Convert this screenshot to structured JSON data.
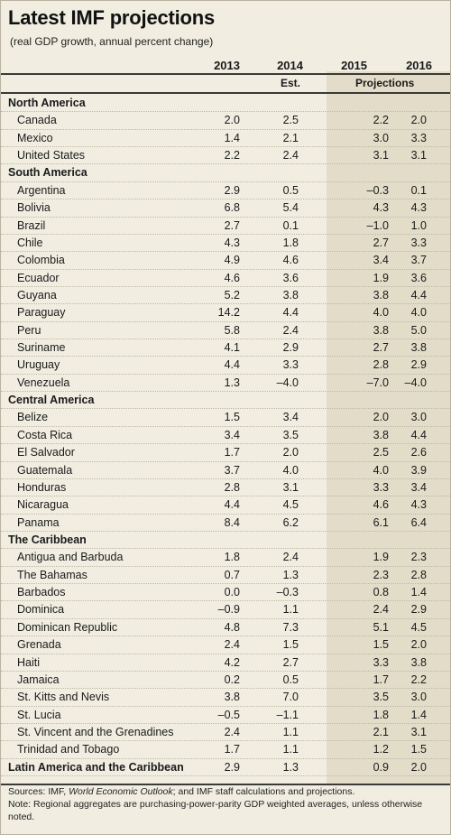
{
  "title": "Latest IMF projections",
  "subtitle": "(real GDP growth, annual percent change)",
  "header": {
    "years": [
      "2013",
      "2014",
      "2015",
      "2016"
    ],
    "est_label": "Est.",
    "projections_label": "Projections"
  },
  "rows": [
    {
      "type": "section",
      "name": "North America"
    },
    {
      "type": "row",
      "name": "Canada",
      "vals": [
        "2.0",
        "2.5",
        "2.2",
        "2.0"
      ]
    },
    {
      "type": "row",
      "name": "Mexico",
      "vals": [
        "1.4",
        "2.1",
        "3.0",
        "3.3"
      ]
    },
    {
      "type": "row",
      "name": "United States",
      "vals": [
        "2.2",
        "2.4",
        "3.1",
        "3.1"
      ]
    },
    {
      "type": "section",
      "name": "South America"
    },
    {
      "type": "row",
      "name": "Argentina",
      "vals": [
        "2.9",
        "0.5",
        "–0.3",
        "0.1"
      ]
    },
    {
      "type": "row",
      "name": "Bolivia",
      "vals": [
        "6.8",
        "5.4",
        "4.3",
        "4.3"
      ]
    },
    {
      "type": "row",
      "name": "Brazil",
      "vals": [
        "2.7",
        "0.1",
        "–1.0",
        "1.0"
      ]
    },
    {
      "type": "row",
      "name": "Chile",
      "vals": [
        "4.3",
        "1.8",
        "2.7",
        "3.3"
      ]
    },
    {
      "type": "row",
      "name": "Colombia",
      "vals": [
        "4.9",
        "4.6",
        "3.4",
        "3.7"
      ]
    },
    {
      "type": "row",
      "name": "Ecuador",
      "vals": [
        "4.6",
        "3.6",
        "1.9",
        "3.6"
      ]
    },
    {
      "type": "row",
      "name": "Guyana",
      "vals": [
        "5.2",
        "3.8",
        "3.8",
        "4.4"
      ]
    },
    {
      "type": "row",
      "name": "Paraguay",
      "vals": [
        "14.2",
        "4.4",
        "4.0",
        "4.0"
      ]
    },
    {
      "type": "row",
      "name": "Peru",
      "vals": [
        "5.8",
        "2.4",
        "3.8",
        "5.0"
      ]
    },
    {
      "type": "row",
      "name": "Suriname",
      "vals": [
        "4.1",
        "2.9",
        "2.7",
        "3.8"
      ]
    },
    {
      "type": "row",
      "name": "Uruguay",
      "vals": [
        "4.4",
        "3.3",
        "2.8",
        "2.9"
      ]
    },
    {
      "type": "row",
      "name": "Venezuela",
      "vals": [
        "1.3",
        "–4.0",
        "–7.0",
        "–4.0"
      ]
    },
    {
      "type": "section",
      "name": "Central America"
    },
    {
      "type": "row",
      "name": "Belize",
      "vals": [
        "1.5",
        "3.4",
        "2.0",
        "3.0"
      ]
    },
    {
      "type": "row",
      "name": "Costa Rica",
      "vals": [
        "3.4",
        "3.5",
        "3.8",
        "4.4"
      ]
    },
    {
      "type": "row",
      "name": "El Salvador",
      "vals": [
        "1.7",
        "2.0",
        "2.5",
        "2.6"
      ]
    },
    {
      "type": "row",
      "name": "Guatemala",
      "vals": [
        "3.7",
        "4.0",
        "4.0",
        "3.9"
      ]
    },
    {
      "type": "row",
      "name": "Honduras",
      "vals": [
        "2.8",
        "3.1",
        "3.3",
        "3.4"
      ]
    },
    {
      "type": "row",
      "name": "Nicaragua",
      "vals": [
        "4.4",
        "4.5",
        "4.6",
        "4.3"
      ]
    },
    {
      "type": "row",
      "name": "Panama",
      "vals": [
        "8.4",
        "6.2",
        "6.1",
        "6.4"
      ]
    },
    {
      "type": "section",
      "name": "The Caribbean"
    },
    {
      "type": "row",
      "name": "Antigua and Barbuda",
      "vals": [
        "1.8",
        "2.4",
        "1.9",
        "2.3"
      ]
    },
    {
      "type": "row",
      "name": "The Bahamas",
      "vals": [
        "0.7",
        "1.3",
        "2.3",
        "2.8"
      ]
    },
    {
      "type": "row",
      "name": "Barbados",
      "vals": [
        "0.0",
        "–0.3",
        "0.8",
        "1.4"
      ]
    },
    {
      "type": "row",
      "name": "Dominica",
      "vals": [
        "–0.9",
        "1.1",
        "2.4",
        "2.9"
      ]
    },
    {
      "type": "row",
      "name": "Dominican Republic",
      "vals": [
        "4.8",
        "7.3",
        "5.1",
        "4.5"
      ]
    },
    {
      "type": "row",
      "name": "Grenada",
      "vals": [
        "2.4",
        "1.5",
        "1.5",
        "2.0"
      ]
    },
    {
      "type": "row",
      "name": "Haiti",
      "vals": [
        "4.2",
        "2.7",
        "3.3",
        "3.8"
      ]
    },
    {
      "type": "row",
      "name": "Jamaica",
      "vals": [
        "0.2",
        "0.5",
        "1.7",
        "2.2"
      ]
    },
    {
      "type": "row",
      "name": "St. Kitts and Nevis",
      "vals": [
        "3.8",
        "7.0",
        "3.5",
        "3.0"
      ]
    },
    {
      "type": "row",
      "name": "St. Lucia",
      "vals": [
        "–0.5",
        "–1.1",
        "1.8",
        "1.4"
      ]
    },
    {
      "type": "row",
      "name": "St. Vincent and the Grenadines",
      "vals": [
        "2.4",
        "1.1",
        "2.1",
        "3.1"
      ]
    },
    {
      "type": "row",
      "name": "Trinidad and Tobago",
      "vals": [
        "1.7",
        "1.1",
        "1.2",
        "1.5"
      ]
    },
    {
      "type": "total",
      "name": "Latin America and the Caribbean",
      "vals": [
        "2.9",
        "1.3",
        "0.9",
        "2.0"
      ]
    }
  ],
  "footer": {
    "sources_prefix": "Sources: IMF, ",
    "sources_italic": "World Economic Outlook",
    "sources_suffix": "; and IMF staff calculations and projections.",
    "note": "Note: Regional aggregates are purchasing-power-parity GDP weighted averages, unless otherwise noted."
  }
}
